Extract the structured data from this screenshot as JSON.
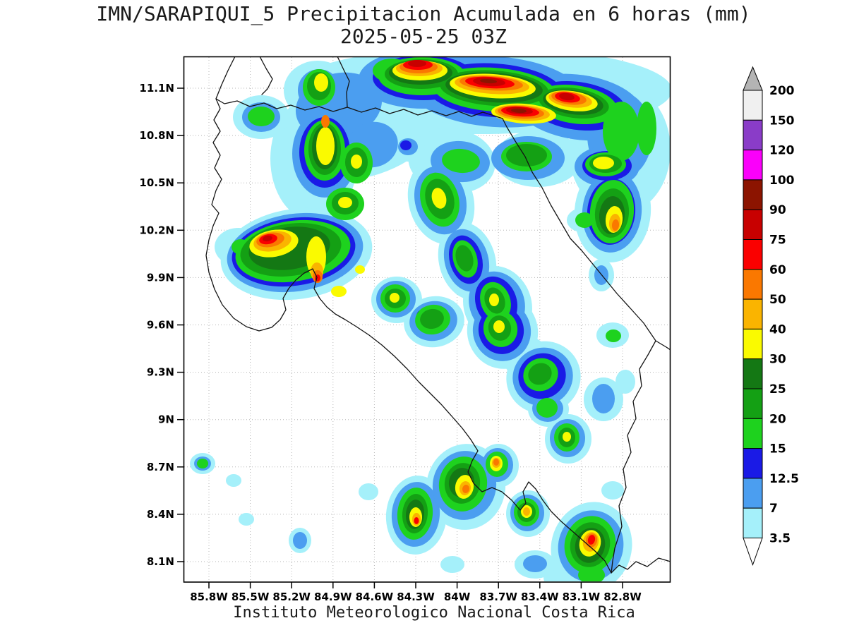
{
  "title": {
    "line1": "IMN/SARAPIQUI_5 Precipitacion Acumulada en 6 horas (mm)",
    "line2": "2025-05-25 03Z"
  },
  "footer": "Instituto Meteorologico Nacional Costa Rica",
  "map": {
    "lat_ticks": [
      "11.1N",
      "10.8N",
      "10.5N",
      "10.2N",
      "9.9N",
      "9.6N",
      "9.3N",
      "9N",
      "8.7N",
      "8.4N",
      "8.1N"
    ],
    "lon_ticks": [
      "85.8W",
      "85.5W",
      "85.2W",
      "84.9W",
      "84.6W",
      "84.3W",
      "84W",
      "83.7W",
      "83.4W",
      "83.1W",
      "82.8W"
    ]
  },
  "colorbar": {
    "labels": [
      "200",
      "150",
      "120",
      "100",
      "90",
      "75",
      "60",
      "50",
      "40",
      "30",
      "25",
      "20",
      "15",
      "12.5",
      "7",
      "3.5"
    ],
    "segments_top_to_bottom": [
      "#f0f0f0",
      "#8a3cc8",
      "#fa00fa",
      "#8c1400",
      "#c80000",
      "#fa0000",
      "#fa7800",
      "#fab400",
      "#fafa00",
      "#147814",
      "#14a014",
      "#1ed21e",
      "#1a1ae6",
      "#4b9ef0",
      "#a5f0fa"
    ],
    "arrow_top_color": "#b4b4b4",
    "arrow_bottom_color": "#ffffff",
    "units": "mm"
  },
  "palette": {
    "3.5": "#a5f0fa",
    "7": "#4b9ef0",
    "12.5": "#1a1ae6",
    "15": "#1ed21e",
    "20": "#14a014",
    "25": "#147814",
    "30": "#fafa00",
    "40": "#fab400",
    "50": "#fa7800",
    "60": "#fa0000",
    "75": "#c80000",
    "90": "#8c1400"
  }
}
